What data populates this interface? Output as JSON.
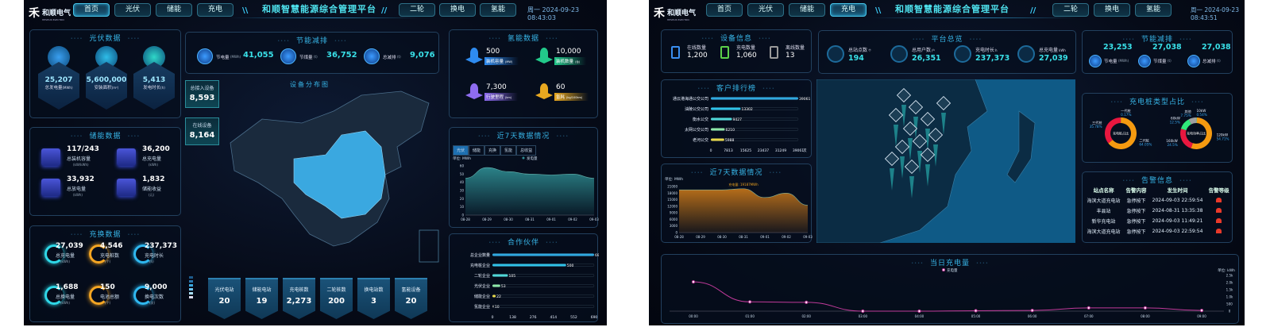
{
  "left": {
    "logo": {
      "name": "和顺电气",
      "en": "HESHUN ELECTRIC"
    },
    "nav_left": [
      "首页",
      "光伏",
      "储能",
      "充电"
    ],
    "nav_right": [
      "二轮",
      "换电",
      "氢能"
    ],
    "active_nav": "首页",
    "title": "和顺智慧能源综合管理平台",
    "datetime": "周一 2024-09-23 08:43:03",
    "pv": {
      "title": "光伏数据",
      "items": [
        {
          "value": "25,207",
          "label": "总发电量",
          "unit": "(MWh)"
        },
        {
          "value": "5,600,000",
          "label": "安装面积",
          "unit": "(m²)"
        },
        {
          "value": "5,413",
          "label": "发电时长",
          "unit": "(h)"
        }
      ]
    },
    "storage": {
      "title": "储能数据",
      "items": [
        {
          "value": "117/243",
          "label": "总装机容量",
          "unit": "(kW/kWh)"
        },
        {
          "value": "36,200",
          "label": "总充电量",
          "unit": "(kWh)"
        },
        {
          "value": "33,932",
          "label": "总放电量",
          "unit": "(kWh)"
        },
        {
          "value": "1,832",
          "label": "储能收益",
          "unit": "(元)"
        }
      ]
    },
    "charge": {
      "title": "充换数据",
      "items": [
        {
          "value": "27,039",
          "label": "总充电量",
          "unit": "(kWh)",
          "color": "#2fd8e8"
        },
        {
          "value": "4,546",
          "label": "充电桩数",
          "unit": "(个)",
          "color": "#f5a623"
        },
        {
          "value": "237,373",
          "label": "充电时长",
          "unit": "(h)",
          "color": "#2fb8f0"
        },
        {
          "value": "1,688",
          "label": "总换电量",
          "unit": "(kWh)",
          "color": "#2fd8e8"
        },
        {
          "value": "150",
          "label": "电池总额",
          "unit": "(个)",
          "color": "#f5a623"
        },
        {
          "value": "9,000",
          "label": "换电次数",
          "unit": "(次)",
          "color": "#2fb8f0"
        }
      ]
    },
    "saving": {
      "title": "节能减排",
      "items": [
        {
          "value": "41,055",
          "label": "节电量",
          "unit": "(MWh)",
          "icon": "lightning-icon"
        },
        {
          "value": "36,752",
          "label": "节煤量",
          "unit": "(t)",
          "icon": "coal-icon"
        },
        {
          "value": "9,076",
          "label": "总减排",
          "unit": "(t)",
          "icon": "cloud-icon"
        }
      ]
    },
    "devices": {
      "total_label": "总接入设备",
      "total": "8,593",
      "online_label": "在线设备",
      "online": "8,164"
    },
    "map_title": "设备分布图",
    "stations": [
      {
        "label": "光伏电站",
        "value": "20"
      },
      {
        "label": "储能电站",
        "value": "19"
      },
      {
        "label": "充电桩数",
        "value": "2,273"
      },
      {
        "label": "二轮桩数",
        "value": "200"
      },
      {
        "label": "换电站数",
        "value": "3"
      },
      {
        "label": "氢能设备",
        "value": "20"
      }
    ],
    "hydrogen": {
      "title": "氢能数据",
      "items": [
        {
          "value": "500",
          "label": "装机容量",
          "unit": "(MW)",
          "color": "#2e8bf0"
        },
        {
          "value": "10,000",
          "label": "装机数量",
          "unit": "(台)",
          "color": "#22c98a"
        },
        {
          "value": "7,300",
          "label": "行驶里程",
          "unit": "(km)",
          "color": "#8e6cf0"
        },
        {
          "value": "60",
          "label": "氢耗",
          "unit": "(kg/100km)",
          "color": "#e8a820"
        }
      ]
    },
    "week": {
      "title": "近7天数据情况",
      "tabs": [
        "光伏",
        "储能",
        "充换",
        "氢能",
        "总收益"
      ],
      "active_tab": "光伏"
    },
    "partners": {
      "title": "合作伙伴"
    }
  },
  "right": {
    "logo": {
      "name": "和顺电气",
      "en": "HESHUN ELECTRIC"
    },
    "nav_left": [
      "首页",
      "光伏",
      "储能",
      "充电"
    ],
    "nav_right": [
      "二轮",
      "换电",
      "氢能"
    ],
    "active_nav": "充电",
    "title": "和顺智慧能源综合管理平台",
    "datetime": "周一 2024-09-23 08:43:51",
    "device_info": {
      "title": "设备信息",
      "items": [
        {
          "label": "在线数量",
          "value": "1,200",
          "color": "#3a8ef0"
        },
        {
          "label": "充电数量",
          "value": "1,060",
          "color": "#5cd04a"
        },
        {
          "label": "离线数量",
          "value": "13",
          "color": "#9a9a9a"
        }
      ]
    },
    "overview": {
      "title": "平台总览",
      "items": [
        {
          "label": "总站点数",
          "unit": "个",
          "value": "194",
          "icon": "station-icon"
        },
        {
          "label": "总用户数",
          "unit": "户",
          "value": "26,351",
          "icon": "users-icon"
        },
        {
          "label": "充电时长",
          "unit": "h",
          "value": "237,373",
          "icon": "clock-icon"
        },
        {
          "label": "总充电量",
          "unit": "kWh",
          "value": "27,039",
          "icon": "battery-icon"
        }
      ]
    },
    "saving": {
      "title": "节能减排",
      "items": [
        {
          "value": "23,253",
          "label": "节电量",
          "unit": "(MWh)",
          "icon": "lightning-icon"
        },
        {
          "value": "27,038",
          "label": "节煤量",
          "unit": "(t)",
          "icon": "coal-icon"
        },
        {
          "value": "27,038",
          "label": "总减排",
          "unit": "(t)",
          "icon": "cloud-icon"
        }
      ]
    },
    "ranking": {
      "title": "客户排行榜"
    },
    "week": {
      "title": "近7天数据情况"
    },
    "pile_type": {
      "title": "充电桩类型占比"
    },
    "alarms": {
      "title": "告警信息",
      "headers": [
        "站点名称",
        "告警内容",
        "发生时间",
        "告警等级"
      ],
      "rows": [
        [
          "海滨大道充电站",
          "急停按下",
          "2024-09-03 22:59:54"
        ],
        [
          "丰县站",
          "急停按下",
          "2024-08-31 13:35:38"
        ],
        [
          "新华充电站",
          "急停按下",
          "2024-09-03 11:49:21"
        ],
        [
          "海滨大道充电站",
          "急停按下",
          "2024-09-03 22:59:54"
        ]
      ],
      "level_color": "#e8392a"
    },
    "today": {
      "title": "当日充电量"
    }
  },
  "chart_data": [
    {
      "id": "left-week",
      "type": "area",
      "unit_label": "单位: MWh",
      "legend": [
        "发电量"
      ],
      "x": [
        "08-28",
        "08-29",
        "08-30",
        "08-31",
        "09-01",
        "09-02",
        "09-03"
      ],
      "series": [
        {
          "name": "发电量",
          "values": [
            45,
            58,
            53,
            50,
            49,
            50,
            45
          ]
        }
      ],
      "ylim": [
        0,
        60
      ],
      "yticks": [
        0,
        10,
        20,
        30,
        40,
        50,
        60
      ],
      "color": "#2f8f94",
      "grid": false
    },
    {
      "id": "left-partners",
      "type": "bar",
      "orientation": "horizontal",
      "categories": [
        "总企业数量",
        "充电桩企业",
        "二轮企业",
        "光伏企业",
        "储能企业",
        "氢能企业"
      ],
      "values": [
        690,
        500,
        105,
        53,
        22,
        10
      ],
      "xticks": [
        0,
        138,
        276,
        414,
        552,
        690
      ],
      "xunit": "家",
      "xlim": [
        0,
        690
      ],
      "colors": [
        "#2fa8e0",
        "#2fc2e8",
        "#4fd8d8",
        "#8ee8a8",
        "#e8d84a",
        "#888888"
      ]
    },
    {
      "id": "right-ranking",
      "type": "bar",
      "orientation": "horizontal",
      "categories": [
        "通云港海通公交公司",
        "油陵公交公司",
        "衡水公交",
        "太网公交公司",
        "老河公交"
      ],
      "values": [
        39061,
        13302,
        9427,
        6210,
        5988
      ],
      "xticks": [
        0,
        7813,
        15625,
        23437,
        31249,
        39061
      ],
      "xunit": "次",
      "xlim": [
        0,
        39061
      ],
      "colors": [
        "#2fa8e0",
        "#2fc2e8",
        "#4fd8d8",
        "#8ee8a8",
        "#e8d84a"
      ]
    },
    {
      "id": "right-week",
      "type": "area",
      "unit_label": "单位: MWh",
      "tooltip": "充电量: 19187MWh",
      "x": [
        "08-28",
        "08-29",
        "08-30",
        "08-31",
        "09-01",
        "09-02",
        "09-03"
      ],
      "series": [
        {
          "name": "充电量",
          "values": [
            19500,
            19500,
            19500,
            20000,
            16000,
            18000,
            12500
          ]
        }
      ],
      "ylim": [
        0,
        21000
      ],
      "yticks": [
        0,
        3000,
        6000,
        9000,
        12000,
        15000,
        18000,
        21000
      ],
      "color": "#c9781a",
      "grid": false
    },
    {
      "id": "right-donut-1",
      "type": "pie",
      "center_label": "充电桩占比",
      "labels": [
        "一代桩",
        "二代桩",
        "三代桩"
      ],
      "values": [
        0.17,
        64.05,
        35.78
      ],
      "value_labels": [
        "0.17%",
        "64.05%",
        "35.78%"
      ],
      "colors": [
        "#2fd85a",
        "#f59a10",
        "#e8173f"
      ]
    },
    {
      "id": "right-donut-2",
      "type": "pie",
      "center_label": "充电功率占比",
      "labels": [
        "10kW",
        "120kW",
        "160kW",
        "60kW",
        "其他"
      ],
      "values": [
        0.54,
        54.71,
        24.5,
        12.5,
        7.75
      ],
      "value_labels": [
        "0.54%",
        "54.71%",
        "24.5%",
        "12.5%",
        "7.75%"
      ],
      "colors": [
        "#2fd8e8",
        "#f59a10",
        "#e8173f",
        "#2fe87a",
        "#a0a0a0"
      ]
    },
    {
      "id": "right-today",
      "type": "line",
      "unit_label": "单位: kWh",
      "legend": [
        "充电量"
      ],
      "x": [
        "00:00",
        "01:00",
        "02:00",
        "03:00",
        "04:00",
        "05:00",
        "06:00",
        "07:00",
        "08:00",
        "09:00"
      ],
      "series": [
        {
          "name": "充电量",
          "values": [
            2050,
            650,
            620,
            0,
            0,
            30,
            50,
            230,
            230,
            50
          ]
        }
      ],
      "ylim": [
        0,
        2500
      ],
      "yticks": [
        "0",
        "500",
        "1.0k",
        "1.5k",
        "2.0k",
        "2.5k"
      ],
      "color": "#c03a9a",
      "grid": false
    }
  ]
}
